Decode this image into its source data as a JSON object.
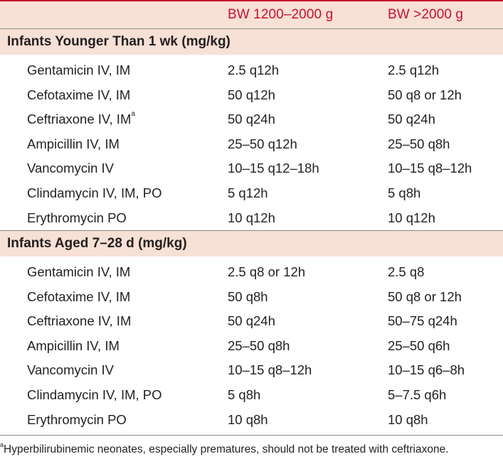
{
  "header": {
    "col2": "BW 1200–2000 g",
    "col3": "BW >2000 g"
  },
  "sections": [
    {
      "title": "Infants Younger Than 1 wk (mg/kg)",
      "rows": [
        {
          "drug": "Gentamicin IV, IM",
          "sup": "",
          "bw_low": "2.5 q12h",
          "bw_high": "2.5 q12h"
        },
        {
          "drug": "Cefotaxime IV, IM",
          "sup": "",
          "bw_low": "50 q12h",
          "bw_high": "50 q8 or 12h"
        },
        {
          "drug": "Ceftriaxone IV, IM",
          "sup": "a",
          "bw_low": "50 q24h",
          "bw_high": "50 q24h"
        },
        {
          "drug": "Ampicillin IV, IM",
          "sup": "",
          "bw_low": "25–50 q12h",
          "bw_high": "25–50 q8h"
        },
        {
          "drug": "Vancomycin IV",
          "sup": "",
          "bw_low": "10–15 q12–18h",
          "bw_high": "10–15 q8–12h"
        },
        {
          "drug": "Clindamycin IV, IM, PO",
          "sup": "",
          "bw_low": "5 q12h",
          "bw_high": "5 q8h"
        },
        {
          "drug": "Erythromycin PO",
          "sup": "",
          "bw_low": "10 q12h",
          "bw_high": "10 q12h"
        }
      ]
    },
    {
      "title": "Infants Aged 7–28 d (mg/kg)",
      "rows": [
        {
          "drug": "Gentamicin IV, IM",
          "sup": "",
          "bw_low": "2.5 q8 or 12h",
          "bw_high": "2.5 q8"
        },
        {
          "drug": "Cefotaxime IV, IM",
          "sup": "",
          "bw_low": "50 q8h",
          "bw_high": "50 q8 or 12h"
        },
        {
          "drug": "Ceftriaxone IV, IM",
          "sup": "",
          "bw_low": "50 q24h",
          "bw_high": "50–75 q24h"
        },
        {
          "drug": "Ampicillin IV, IM",
          "sup": "",
          "bw_low": "25–50 q8h",
          "bw_high": "25–50 q6h"
        },
        {
          "drug": "Vancomycin IV",
          "sup": "",
          "bw_low": "10–15 q8–12h",
          "bw_high": "10–15 q6–8h"
        },
        {
          "drug": "Clindamycin IV, IM, PO",
          "sup": "",
          "bw_low": "5 q8h",
          "bw_high": "5–7.5 q6h"
        },
        {
          "drug": "Erythromycin PO",
          "sup": "",
          "bw_low": "10 q8h",
          "bw_high": "10 q8h"
        }
      ]
    }
  ],
  "footnote": {
    "marker": "a",
    "text": "Hyperbilirubinemic neonates, especially prematures, should not be treated with ceftriaxone."
  },
  "colors": {
    "accent": "#c8102e",
    "band": "#f7e0d5"
  }
}
